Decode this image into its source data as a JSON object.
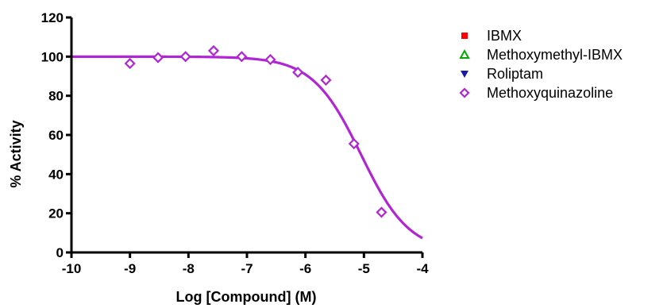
{
  "chart_data": {
    "type": "scatter",
    "title": "",
    "xlabel": "Log [Compound] (M)",
    "ylabel": "% Activity",
    "xlim": [
      -10,
      -4
    ],
    "ylim": [
      0,
      120
    ],
    "x_ticks": [
      -10,
      -9,
      -8,
      -7,
      -6,
      -5,
      -4
    ],
    "x_tick_labels": [
      "-10",
      "-9",
      "-8",
      "-7",
      "-6",
      "-5",
      "-4"
    ],
    "y_ticks": [
      0,
      20,
      40,
      60,
      80,
      100,
      120
    ],
    "y_tick_labels": [
      "0",
      "20",
      "40",
      "60",
      "80",
      "100",
      "120"
    ],
    "grid": false,
    "legend_position": "right",
    "series": [
      {
        "name": "IBMX",
        "marker": "square-filled",
        "color": "#ff0000",
        "x": [],
        "y": []
      },
      {
        "name": "Methoxymethyl-IBMX",
        "marker": "triangle-open",
        "color": "#00aa00",
        "x": [],
        "y": []
      },
      {
        "name": "Roliptam",
        "marker": "triangle-down-filled",
        "color": "#1a1aa8",
        "x": [],
        "y": []
      },
      {
        "name": "Methoxyquinazoline",
        "marker": "diamond-open",
        "color": "#b026d4",
        "x": [
          -9.0,
          -8.52,
          -8.05,
          -7.57,
          -7.09,
          -6.6,
          -6.13,
          -5.65,
          -5.17,
          -4.7
        ],
        "y": [
          96.5,
          99.5,
          100,
          103,
          100,
          98.5,
          92,
          88,
          55.5,
          20.5
        ],
        "fit": {
          "model": "sigmoidal-dose-response",
          "top": 100,
          "bottom": 0,
          "logIC50": -5.05,
          "hill": -1.05
        }
      }
    ]
  }
}
